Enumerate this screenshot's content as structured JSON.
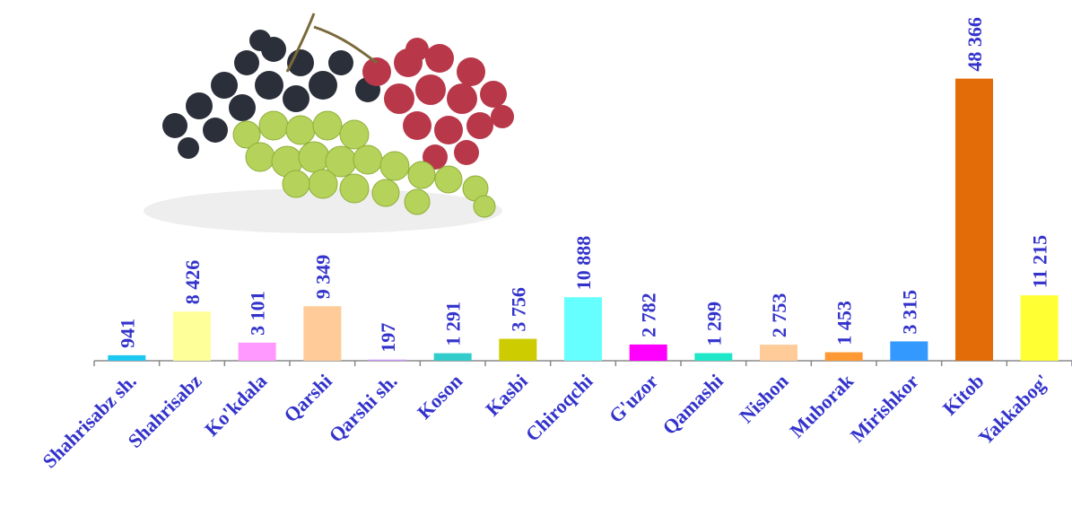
{
  "chart_data": {
    "type": "bar",
    "categories": [
      "Shahrisabz sh.",
      "Shahrisabz",
      "Ko'kdala",
      "Qarshi",
      "Qarshi sh.",
      "Koson",
      "Kasbi",
      "Chiroqchi",
      "G'uzor",
      "Qamashi",
      "Nishon",
      "Muborak",
      "Mirishkor",
      "Kitob",
      "Yakkabog'"
    ],
    "values": [
      941,
      8426,
      3101,
      9349,
      197,
      1291,
      3756,
      10888,
      2782,
      1299,
      2753,
      1453,
      3315,
      48366,
      11215
    ],
    "value_labels": [
      "941",
      "8 426",
      "3 101",
      "9 349",
      "197",
      "1 291",
      "3 756",
      "10 888",
      "2 782",
      "1 299",
      "2 753",
      "1 453",
      "3 315",
      "48 366",
      "11 215"
    ],
    "colors": [
      "#1fc8f0",
      "#ffff99",
      "#ff99ff",
      "#ffcc99",
      "#cc99ff",
      "#33cccc",
      "#cccc00",
      "#66ffff",
      "#ff00ff",
      "#1ee8c8",
      "#ffcc99",
      "#ff9933",
      "#3399ff",
      "#e36c09",
      "#ffff33"
    ],
    "ylim": [
      0,
      50000
    ]
  }
}
